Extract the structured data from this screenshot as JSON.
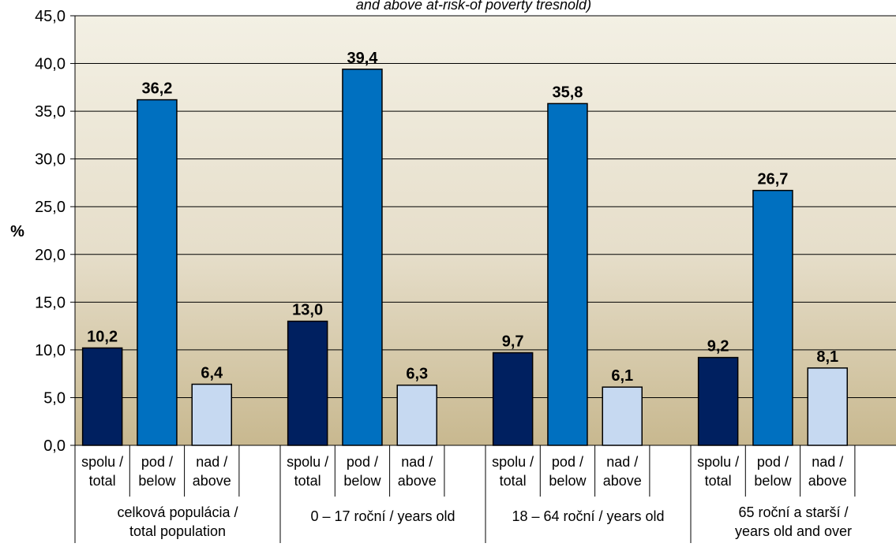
{
  "chart_data": {
    "type": "bar",
    "title": "and above at-risk-of poverty tresnold)",
    "ylabel": "%",
    "ylim": [
      0,
      45
    ],
    "ytick_step": 5,
    "ytick_labels": [
      "0,0",
      "5,0",
      "10,0",
      "15,0",
      "20,0",
      "25,0",
      "30,0",
      "35,0",
      "40,0",
      "45,0"
    ],
    "grid": true,
    "legend": "none",
    "groups": [
      {
        "label_lines": [
          "celková populácia /",
          "total population"
        ],
        "bars": [
          {
            "category": "spolu / total",
            "value": 10.2,
            "label": "10,2"
          },
          {
            "category": "pod / below",
            "value": 36.2,
            "label": "36,2"
          },
          {
            "category": "nad / above",
            "value": 6.4,
            "label": "6,4"
          }
        ]
      },
      {
        "label_lines": [
          "0 – 17 roční / years old"
        ],
        "bars": [
          {
            "category": "spolu / total",
            "value": 13.0,
            "label": "13,0"
          },
          {
            "category": "pod / below",
            "value": 39.4,
            "label": "39,4"
          },
          {
            "category": "nad / above",
            "value": 6.3,
            "label": "6,3"
          }
        ]
      },
      {
        "label_lines": [
          "18 – 64 roční / years old"
        ],
        "bars": [
          {
            "category": "spolu / total",
            "value": 9.7,
            "label": "9,7"
          },
          {
            "category": "pod / below",
            "value": 35.8,
            "label": "35,8"
          },
          {
            "category": "nad / above",
            "value": 6.1,
            "label": "6,1"
          }
        ]
      },
      {
        "label_lines": [
          "65 roční a starší /",
          "years old and over"
        ],
        "bars": [
          {
            "category": "spolu / total",
            "value": 9.2,
            "label": "9,2"
          },
          {
            "category": "pod / below",
            "value": 26.7,
            "label": "26,7"
          },
          {
            "category": "nad / above",
            "value": 8.1,
            "label": "8,1"
          }
        ]
      }
    ],
    "category_label_lines": [
      [
        "spolu /",
        "total"
      ],
      [
        "pod /",
        "below"
      ],
      [
        "nad /",
        "above"
      ]
    ],
    "series_colors": [
      "#002060",
      "#0070C0",
      "#C6D9F1"
    ]
  }
}
